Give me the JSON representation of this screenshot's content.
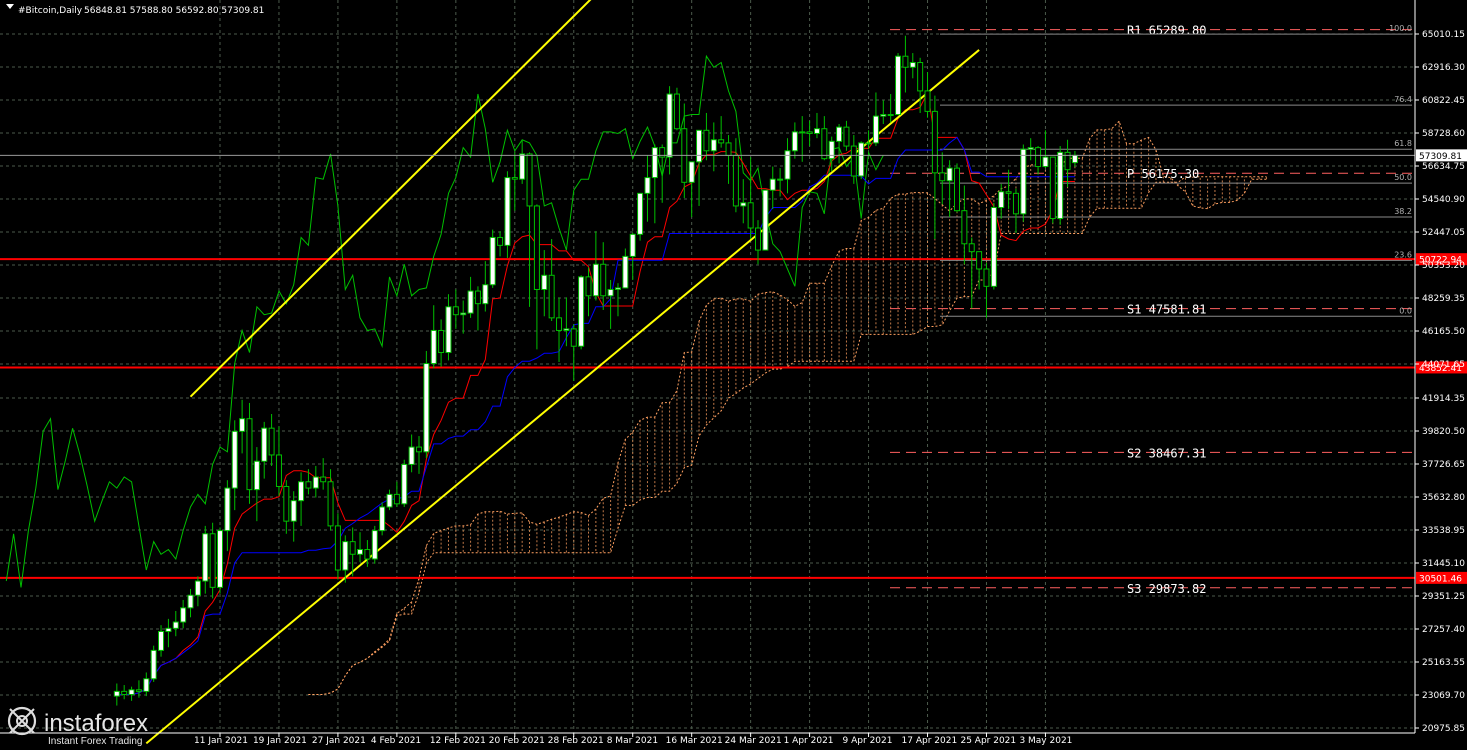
{
  "header": {
    "symbol": "#Bitcoin,Daily",
    "ohlc": "56848.81 57588.80 56592.80 57309.81"
  },
  "colors": {
    "background": "#000000",
    "grid": "#4b5a4b",
    "bull_candle": "#ffffff",
    "bear_candle": "#000000",
    "candle_outline": "#00c000",
    "tenkan": "#ff0000",
    "kijun": "#0000ff",
    "chikou": "#00c000",
    "kumo_a": "#ffa060",
    "channel": "#ffff00",
    "support_resistance": "#ff0000",
    "pivot": "#ff6060"
  },
  "watermark": {
    "brand": "instaforex",
    "tagline": "Instant Forex Trading",
    "logo_icon": "instaforex-logo-icon"
  },
  "chart_data": {
    "type": "candlestick",
    "title": "#Bitcoin,Daily",
    "xlabel": "",
    "ylabel": "",
    "ylim": [
      20200,
      66000
    ],
    "grid": true,
    "y_ticks": [
      "65010.15",
      "62916.30",
      "60822.45",
      "58728.60",
      "56634.75",
      "54540.90",
      "52447.05",
      "50353.20",
      "48259.35",
      "46165.50",
      "44071.65",
      "41914.35",
      "39820.50",
      "37726.65",
      "35632.80",
      "33538.95",
      "31445.10",
      "29351.25",
      "27257.40",
      "25163.55",
      "23069.70",
      "20975.85"
    ],
    "x_ticks": [
      "11 Jan 2021",
      "19 Jan 2021",
      "27 Jan 2021",
      "4 Feb 2021",
      "12 Feb 2021",
      "20 Feb 2021",
      "28 Feb 2021",
      "8 Mar 2021",
      "16 Mar 2021",
      "24 Mar 2021",
      "1 Apr 2021",
      "9 Apr 2021",
      "17 Apr 2021",
      "25 Apr 2021",
      "3 May 2021"
    ],
    "current_price": "57309.81",
    "red_levels": [
      {
        "label": "50722.94",
        "price": 50722.94
      },
      {
        "label": "43852.41",
        "price": 43852.41
      },
      {
        "label": "30501.46",
        "price": 30501.46
      }
    ],
    "pivots": [
      {
        "label": "R1 65289.80",
        "price": 65289.8
      },
      {
        "label": "P 56175.30",
        "price": 56175.3
      },
      {
        "label": "S1 47581.81",
        "price": 47581.81
      },
      {
        "label": "S2 38467.31",
        "price": 38467.31
      },
      {
        "label": "S3 29873.82",
        "price": 29873.82
      }
    ],
    "fibonacci": [
      {
        "label": "100.0",
        "price": 65000
      },
      {
        "label": "76.4",
        "price": 60500
      },
      {
        "label": "61.8",
        "price": 57700
      },
      {
        "label": "50.0",
        "price": 55550
      },
      {
        "label": "38.2",
        "price": 53400
      },
      {
        "label": "23.6",
        "price": 50650
      },
      {
        "label": "0.0",
        "price": 47100
      }
    ],
    "channel": {
      "upper": [
        [
          "2021-01-07",
          42000
        ],
        [
          "2021-03-04",
          68000
        ]
      ],
      "lower": [
        [
          "2021-01-01",
          20000
        ],
        [
          "2021-04-24",
          64000
        ]
      ]
    },
    "candles": [
      {
        "d": "2020-12-28",
        "o": 23000,
        "h": 23800,
        "l": 22400,
        "c": 23300
      },
      {
        "d": "2020-12-29",
        "o": 23300,
        "h": 23700,
        "l": 22800,
        "c": 23100
      },
      {
        "d": "2020-12-30",
        "o": 23100,
        "h": 23600,
        "l": 22700,
        "c": 23400
      },
      {
        "d": "2020-12-31",
        "o": 23400,
        "h": 24000,
        "l": 22900,
        "c": 23300
      },
      {
        "d": "2021-01-01",
        "o": 23300,
        "h": 24500,
        "l": 23000,
        "c": 24100
      },
      {
        "d": "2021-01-02",
        "o": 24100,
        "h": 26200,
        "l": 23900,
        "c": 25900
      },
      {
        "d": "2021-01-03",
        "o": 25900,
        "h": 27500,
        "l": 25500,
        "c": 27100
      },
      {
        "d": "2021-01-04",
        "o": 27100,
        "h": 27900,
        "l": 26100,
        "c": 27300
      },
      {
        "d": "2021-01-05",
        "o": 27300,
        "h": 28400,
        "l": 26800,
        "c": 27700
      },
      {
        "d": "2021-01-06",
        "o": 27700,
        "h": 29100,
        "l": 27300,
        "c": 28600
      },
      {
        "d": "2021-01-07",
        "o": 28600,
        "h": 29800,
        "l": 28000,
        "c": 29400
      },
      {
        "d": "2021-01-08",
        "o": 29400,
        "h": 30600,
        "l": 28700,
        "c": 30300
      },
      {
        "d": "2021-01-09",
        "o": 30300,
        "h": 33800,
        "l": 29500,
        "c": 33300
      },
      {
        "d": "2021-01-10",
        "o": 33300,
        "h": 34000,
        "l": 29200,
        "c": 29900
      },
      {
        "d": "2021-01-11",
        "o": 29900,
        "h": 33700,
        "l": 29500,
        "c": 33500
      },
      {
        "d": "2021-01-12",
        "o": 33500,
        "h": 36700,
        "l": 32200,
        "c": 36200
      },
      {
        "d": "2021-01-13",
        "o": 36200,
        "h": 40500,
        "l": 34800,
        "c": 39800
      },
      {
        "d": "2021-01-14",
        "o": 39800,
        "h": 41800,
        "l": 38400,
        "c": 40600
      },
      {
        "d": "2021-01-15",
        "o": 40600,
        "h": 41600,
        "l": 35200,
        "c": 36100
      },
      {
        "d": "2021-01-16",
        "o": 36100,
        "h": 38800,
        "l": 34100,
        "c": 37900
      },
      {
        "d": "2021-01-17",
        "o": 37900,
        "h": 40400,
        "l": 36800,
        "c": 40000
      },
      {
        "d": "2021-01-18",
        "o": 40000,
        "h": 40900,
        "l": 37600,
        "c": 38300
      },
      {
        "d": "2021-01-19",
        "o": 38300,
        "h": 40100,
        "l": 35700,
        "c": 36300
      },
      {
        "d": "2021-01-20",
        "o": 36300,
        "h": 36700,
        "l": 33300,
        "c": 34100
      },
      {
        "d": "2021-01-21",
        "o": 34100,
        "h": 36000,
        "l": 32800,
        "c": 35400
      },
      {
        "d": "2021-01-22",
        "o": 35400,
        "h": 37200,
        "l": 33800,
        "c": 36600
      },
      {
        "d": "2021-01-23",
        "o": 36600,
        "h": 37400,
        "l": 35800,
        "c": 36200
      },
      {
        "d": "2021-01-24",
        "o": 36200,
        "h": 37600,
        "l": 35600,
        "c": 36900
      },
      {
        "d": "2021-01-25",
        "o": 36900,
        "h": 38100,
        "l": 36100,
        "c": 36600
      },
      {
        "d": "2021-01-26",
        "o": 36600,
        "h": 37400,
        "l": 33500,
        "c": 33800
      },
      {
        "d": "2021-01-27",
        "o": 33800,
        "h": 34600,
        "l": 30400,
        "c": 31000
      },
      {
        "d": "2021-01-28",
        "o": 31000,
        "h": 33200,
        "l": 30200,
        "c": 32800
      },
      {
        "d": "2021-01-29",
        "o": 32800,
        "h": 33700,
        "l": 30600,
        "c": 32000
      },
      {
        "d": "2021-01-30",
        "o": 32000,
        "h": 33400,
        "l": 31500,
        "c": 32300
      },
      {
        "d": "2021-01-31",
        "o": 32300,
        "h": 32900,
        "l": 31200,
        "c": 31700
      },
      {
        "d": "2021-02-01",
        "o": 31700,
        "h": 33800,
        "l": 31400,
        "c": 33500
      },
      {
        "d": "2021-02-02",
        "o": 33500,
        "h": 35300,
        "l": 33200,
        "c": 35000
      },
      {
        "d": "2021-02-03",
        "o": 35000,
        "h": 36100,
        "l": 34800,
        "c": 35800
      },
      {
        "d": "2021-02-04",
        "o": 35800,
        "h": 36600,
        "l": 35000,
        "c": 35200
      },
      {
        "d": "2021-02-05",
        "o": 35200,
        "h": 38000,
        "l": 35000,
        "c": 37700
      },
      {
        "d": "2021-02-06",
        "o": 37700,
        "h": 39600,
        "l": 37200,
        "c": 38800
      },
      {
        "d": "2021-02-07",
        "o": 38800,
        "h": 39500,
        "l": 37100,
        "c": 38500
      },
      {
        "d": "2021-02-08",
        "o": 38500,
        "h": 44900,
        "l": 38100,
        "c": 44100
      },
      {
        "d": "2021-02-09",
        "o": 44100,
        "h": 47800,
        "l": 43800,
        "c": 46200
      },
      {
        "d": "2021-02-10",
        "o": 46200,
        "h": 46900,
        "l": 43900,
        "c": 44800
      },
      {
        "d": "2021-02-11",
        "o": 44800,
        "h": 48500,
        "l": 44300,
        "c": 47700
      },
      {
        "d": "2021-02-12",
        "o": 47700,
        "h": 48800,
        "l": 46300,
        "c": 47200
      },
      {
        "d": "2021-02-13",
        "o": 47200,
        "h": 48100,
        "l": 46000,
        "c": 47300
      },
      {
        "d": "2021-02-14",
        "o": 47300,
        "h": 49600,
        "l": 47000,
        "c": 48700
      },
      {
        "d": "2021-02-15",
        "o": 48700,
        "h": 49000,
        "l": 46200,
        "c": 47900
      },
      {
        "d": "2021-02-16",
        "o": 47900,
        "h": 50600,
        "l": 47400,
        "c": 49100
      },
      {
        "d": "2021-02-17",
        "o": 49100,
        "h": 52600,
        "l": 48900,
        "c": 52100
      },
      {
        "d": "2021-02-18",
        "o": 52100,
        "h": 52500,
        "l": 50900,
        "c": 51600
      },
      {
        "d": "2021-02-19",
        "o": 51600,
        "h": 56300,
        "l": 50800,
        "c": 55900
      },
      {
        "d": "2021-02-20",
        "o": 55900,
        "h": 57500,
        "l": 53800,
        "c": 55800
      },
      {
        "d": "2021-02-21",
        "o": 55800,
        "h": 58300,
        "l": 55500,
        "c": 57400
      },
      {
        "d": "2021-02-22",
        "o": 57400,
        "h": 57500,
        "l": 47700,
        "c": 54100
      },
      {
        "d": "2021-02-23",
        "o": 54100,
        "h": 54200,
        "l": 45000,
        "c": 48800
      },
      {
        "d": "2021-02-24",
        "o": 48800,
        "h": 51300,
        "l": 47100,
        "c": 49700
      },
      {
        "d": "2021-02-25",
        "o": 49700,
        "h": 52000,
        "l": 46800,
        "c": 47000
      },
      {
        "d": "2021-02-26",
        "o": 47000,
        "h": 48300,
        "l": 44200,
        "c": 46200
      },
      {
        "d": "2021-02-27",
        "o": 46200,
        "h": 48300,
        "l": 45200,
        "c": 46300
      },
      {
        "d": "2021-02-28",
        "o": 46300,
        "h": 46600,
        "l": 43000,
        "c": 45200
      },
      {
        "d": "2021-03-01",
        "o": 45200,
        "h": 49700,
        "l": 45000,
        "c": 49600
      },
      {
        "d": "2021-03-02",
        "o": 49600,
        "h": 50200,
        "l": 47100,
        "c": 48400
      },
      {
        "d": "2021-03-03",
        "o": 48400,
        "h": 52500,
        "l": 48100,
        "c": 50400
      },
      {
        "d": "2021-03-04",
        "o": 50400,
        "h": 51800,
        "l": 47500,
        "c": 48400
      },
      {
        "d": "2021-03-05",
        "o": 48400,
        "h": 49400,
        "l": 46300,
        "c": 48800
      },
      {
        "d": "2021-03-06",
        "o": 48800,
        "h": 49200,
        "l": 47100,
        "c": 48900
      },
      {
        "d": "2021-03-07",
        "o": 48900,
        "h": 51400,
        "l": 48900,
        "c": 50900
      },
      {
        "d": "2021-03-08",
        "o": 50900,
        "h": 52400,
        "l": 49400,
        "c": 52300
      },
      {
        "d": "2021-03-09",
        "o": 52300,
        "h": 54900,
        "l": 51900,
        "c": 54900
      },
      {
        "d": "2021-03-10",
        "o": 54900,
        "h": 57300,
        "l": 53100,
        "c": 55900
      },
      {
        "d": "2021-03-11",
        "o": 55900,
        "h": 58000,
        "l": 53000,
        "c": 57800
      },
      {
        "d": "2021-03-12",
        "o": 57800,
        "h": 58000,
        "l": 54300,
        "c": 57200
      },
      {
        "d": "2021-03-13",
        "o": 57200,
        "h": 61700,
        "l": 56100,
        "c": 61200
      },
      {
        "d": "2021-03-14",
        "o": 61200,
        "h": 61600,
        "l": 58900,
        "c": 59000
      },
      {
        "d": "2021-03-15",
        "o": 59000,
        "h": 60600,
        "l": 54600,
        "c": 55600
      },
      {
        "d": "2021-03-16",
        "o": 55600,
        "h": 56900,
        "l": 53400,
        "c": 56900
      },
      {
        "d": "2021-03-17",
        "o": 56900,
        "h": 58900,
        "l": 54100,
        "c": 58900
      },
      {
        "d": "2021-03-18",
        "o": 58900,
        "h": 60000,
        "l": 57000,
        "c": 57600
      },
      {
        "d": "2021-03-19",
        "o": 57600,
        "h": 59400,
        "l": 56300,
        "c": 58300
      },
      {
        "d": "2021-03-20",
        "o": 58300,
        "h": 59800,
        "l": 57800,
        "c": 58100
      },
      {
        "d": "2021-03-21",
        "o": 58100,
        "h": 58600,
        "l": 55500,
        "c": 57300
      },
      {
        "d": "2021-03-22",
        "o": 57300,
        "h": 58400,
        "l": 53700,
        "c": 54100
      },
      {
        "d": "2021-03-23",
        "o": 54100,
        "h": 55800,
        "l": 53000,
        "c": 54300
      },
      {
        "d": "2021-03-24",
        "o": 54300,
        "h": 57200,
        "l": 52000,
        "c": 52700
      },
      {
        "d": "2021-03-25",
        "o": 52700,
        "h": 53200,
        "l": 50400,
        "c": 51300
      },
      {
        "d": "2021-03-26",
        "o": 51300,
        "h": 55100,
        "l": 51300,
        "c": 55100
      },
      {
        "d": "2021-03-27",
        "o": 55100,
        "h": 56600,
        "l": 53900,
        "c": 55800
      },
      {
        "d": "2021-03-28",
        "o": 55800,
        "h": 56500,
        "l": 54700,
        "c": 55800
      },
      {
        "d": "2021-03-29",
        "o": 55800,
        "h": 58400,
        "l": 54900,
        "c": 57600
      },
      {
        "d": "2021-03-30",
        "o": 57600,
        "h": 59400,
        "l": 57100,
        "c": 58800
      },
      {
        "d": "2021-03-31",
        "o": 58800,
        "h": 59800,
        "l": 56900,
        "c": 58800
      },
      {
        "d": "2021-04-01",
        "o": 58800,
        "h": 59500,
        "l": 57900,
        "c": 58700
      },
      {
        "d": "2021-04-02",
        "o": 58700,
        "h": 60000,
        "l": 58400,
        "c": 59000
      },
      {
        "d": "2021-04-03",
        "o": 59000,
        "h": 59800,
        "l": 57000,
        "c": 57100
      },
      {
        "d": "2021-04-04",
        "o": 57100,
        "h": 58500,
        "l": 56300,
        "c": 58200
      },
      {
        "d": "2021-04-05",
        "o": 58200,
        "h": 59300,
        "l": 56800,
        "c": 59100
      },
      {
        "d": "2021-04-06",
        "o": 59100,
        "h": 59500,
        "l": 57600,
        "c": 57900
      },
      {
        "d": "2021-04-07",
        "o": 57900,
        "h": 58600,
        "l": 55500,
        "c": 56000
      },
      {
        "d": "2021-04-08",
        "o": 56000,
        "h": 58200,
        "l": 55800,
        "c": 58100
      },
      {
        "d": "2021-04-09",
        "o": 58100,
        "h": 58900,
        "l": 57700,
        "c": 58100
      },
      {
        "d": "2021-04-10",
        "o": 58100,
        "h": 61300,
        "l": 57900,
        "c": 59800
      },
      {
        "d": "2021-04-11",
        "o": 59800,
        "h": 60800,
        "l": 59300,
        "c": 59900
      },
      {
        "d": "2021-04-12",
        "o": 59900,
        "h": 61200,
        "l": 59400,
        "c": 59900
      },
      {
        "d": "2021-04-13",
        "o": 59900,
        "h": 63800,
        "l": 59900,
        "c": 63600
      },
      {
        "d": "2021-04-14",
        "o": 63600,
        "h": 64900,
        "l": 61300,
        "c": 62900
      },
      {
        "d": "2021-04-15",
        "o": 62900,
        "h": 63800,
        "l": 62200,
        "c": 63200
      },
      {
        "d": "2021-04-16",
        "o": 63200,
        "h": 63500,
        "l": 60000,
        "c": 61400
      },
      {
        "d": "2021-04-17",
        "o": 61400,
        "h": 62600,
        "l": 59700,
        "c": 60100
      },
      {
        "d": "2021-04-18",
        "o": 60100,
        "h": 61100,
        "l": 52000,
        "c": 56200
      },
      {
        "d": "2021-04-19",
        "o": 56200,
        "h": 57500,
        "l": 54200,
        "c": 55700
      },
      {
        "d": "2021-04-20",
        "o": 55700,
        "h": 57000,
        "l": 53400,
        "c": 56500
      },
      {
        "d": "2021-04-21",
        "o": 56500,
        "h": 56800,
        "l": 53700,
        "c": 53800
      },
      {
        "d": "2021-04-22",
        "o": 53800,
        "h": 55400,
        "l": 50400,
        "c": 51700
      },
      {
        "d": "2021-04-23",
        "o": 51700,
        "h": 52100,
        "l": 47600,
        "c": 51200
      },
      {
        "d": "2021-04-24",
        "o": 51200,
        "h": 51200,
        "l": 48800,
        "c": 50100
      },
      {
        "d": "2021-04-25",
        "o": 50100,
        "h": 50500,
        "l": 47000,
        "c": 49000
      },
      {
        "d": "2021-04-26",
        "o": 49000,
        "h": 54300,
        "l": 48800,
        "c": 54000
      },
      {
        "d": "2021-04-27",
        "o": 54000,
        "h": 55500,
        "l": 53300,
        "c": 55000
      },
      {
        "d": "2021-04-28",
        "o": 55000,
        "h": 56400,
        "l": 53900,
        "c": 54900
      },
      {
        "d": "2021-04-29",
        "o": 54900,
        "h": 55200,
        "l": 52400,
        "c": 53600
      },
      {
        "d": "2021-04-30",
        "o": 53600,
        "h": 58000,
        "l": 53100,
        "c": 57700
      },
      {
        "d": "2021-05-01",
        "o": 57700,
        "h": 58400,
        "l": 57000,
        "c": 57800
      },
      {
        "d": "2021-05-02",
        "o": 57800,
        "h": 57900,
        "l": 56100,
        "c": 56600
      },
      {
        "d": "2021-05-03",
        "o": 56600,
        "h": 58900,
        "l": 56500,
        "c": 57200
      },
      {
        "d": "2021-05-04",
        "o": 57200,
        "h": 57000,
        "l": 53000,
        "c": 53300
      },
      {
        "d": "2021-05-05",
        "o": 53300,
        "h": 57900,
        "l": 52900,
        "c": 57500
      },
      {
        "d": "2021-05-06",
        "o": 57500,
        "h": 58300,
        "l": 55300,
        "c": 56400
      },
      {
        "d": "2021-05-07",
        "o": 56849,
        "h": 57589,
        "l": 56593,
        "c": 57310
      }
    ]
  }
}
